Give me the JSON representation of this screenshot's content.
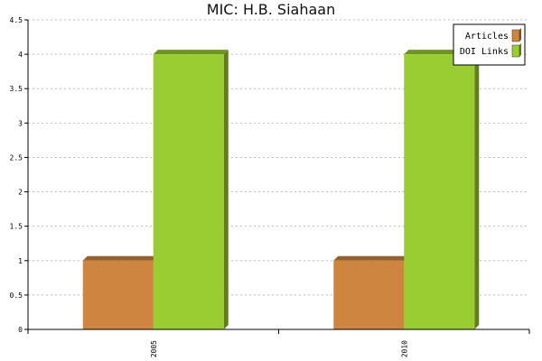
{
  "chart_data": {
    "type": "bar",
    "title": "MIC: H.B. Siahaan",
    "xlabel": "",
    "ylabel": "",
    "categories": [
      "2005",
      "2010"
    ],
    "series": [
      {
        "name": "Articles",
        "values": [
          1,
          1
        ],
        "color": "#cd853f"
      },
      {
        "name": "DOI Links",
        "values": [
          4,
          4
        ],
        "color": "#9acd32"
      }
    ],
    "ylim": [
      0,
      4.5
    ],
    "yticks": [
      "0",
      "0.5",
      "1",
      "1.5",
      "2",
      "2.5",
      "3",
      "3.5",
      "4",
      "4.5"
    ],
    "grid": true,
    "legend": "top-right",
    "style": "3d"
  }
}
